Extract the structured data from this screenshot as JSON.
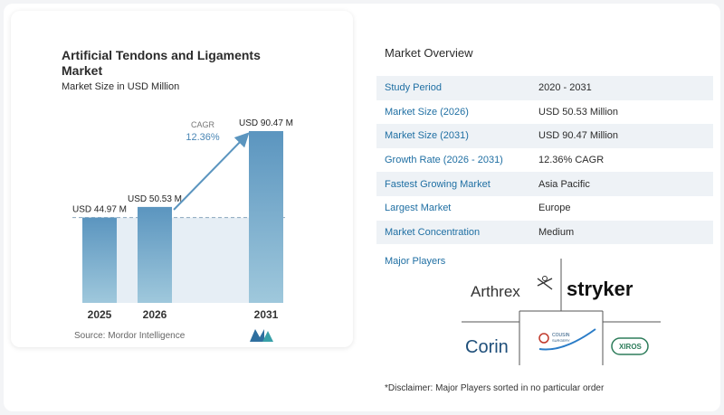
{
  "chart_data": {
    "type": "bar",
    "title": "Artificial Tendons and Ligaments Market",
    "subtitle": "Market Size in USD Million",
    "categories": [
      "2025",
      "2026",
      "2031"
    ],
    "values": [
      44.97,
      50.53,
      90.47
    ],
    "data_labels": [
      "USD 44.97 M",
      "USD 50.53 M",
      "USD 90.47 M"
    ],
    "ylim": [
      0,
      100
    ],
    "grid": false,
    "cagr_label": "CAGR",
    "cagr_value": "12.36%",
    "colors": {
      "bar_top": "#5b95bf",
      "bar_bottom": "#9fc8dc",
      "arrow": "#5b95bf",
      "shade": "#e6eef5"
    }
  },
  "source": "Source:  Mordor Intelligence",
  "overview": {
    "title": "Market Overview",
    "rows": [
      {
        "key": "Study Period",
        "value": "2020 - 2031"
      },
      {
        "key": "Market Size (2026)",
        "value": "USD 50.53 Million"
      },
      {
        "key": "Market Size (2031)",
        "value": "USD 90.47 Million"
      },
      {
        "key": "Growth Rate (2026 - 2031)",
        "value": "12.36% CAGR"
      },
      {
        "key": "Fastest Growing Market",
        "value": "Asia Pacific"
      },
      {
        "key": "Largest Market",
        "value": "Europe"
      },
      {
        "key": "Market Concentration",
        "value": "Medium"
      }
    ]
  },
  "players": {
    "title": "Major Players",
    "logos": [
      "Arthrex",
      "stryker",
      "Corin",
      "COUSIN",
      "XIROS"
    ],
    "cousin_sub": "SURGERY"
  },
  "disclaimer": "*Disclaimer: Major Players sorted in no particular order"
}
